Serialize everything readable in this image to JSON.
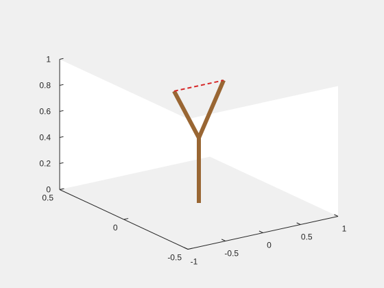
{
  "figure": {
    "background": "#f0f0f0",
    "axes_background": "#ffffff"
  },
  "chart_data": {
    "type": "line3d",
    "title": "",
    "xlabel": "",
    "ylabel": "",
    "zlabel": "",
    "grid": false,
    "view": {
      "azimuth": -37.5,
      "elevation": 30
    },
    "axes": {
      "x": {
        "lim": [
          -1,
          1
        ],
        "ticks": [
          -1,
          -0.5,
          0,
          0.5,
          1
        ],
        "tick_labels": [
          "-1",
          "-0.5",
          "0",
          "0.5",
          "1"
        ]
      },
      "y": {
        "lim": [
          -0.5,
          0.5
        ],
        "ticks": [
          -0.5,
          0,
          0.5
        ],
        "tick_labels": [
          "-0.5",
          "0",
          "0.5"
        ]
      },
      "z": {
        "lim": [
          0,
          1
        ],
        "ticks": [
          0,
          0.2,
          0.4,
          0.6,
          0.8,
          1
        ],
        "tick_labels": [
          "0",
          "0.2",
          "0.4",
          "0.6",
          "0.8",
          "1"
        ]
      }
    },
    "series": [
      {
        "style": "solid",
        "color": "#996633",
        "points": [
          [
            0,
            0,
            0
          ],
          [
            0,
            0,
            0.5
          ],
          [
            -0.33,
            0,
            0.9
          ],
          [
            0,
            0,
            0.5
          ],
          [
            0.33,
            0,
            0.9
          ]
        ]
      },
      {
        "style": "dashed",
        "color": "#d62728",
        "points": [
          [
            -0.33,
            0,
            0.9
          ],
          [
            0.33,
            0,
            0.9
          ]
        ]
      }
    ]
  }
}
